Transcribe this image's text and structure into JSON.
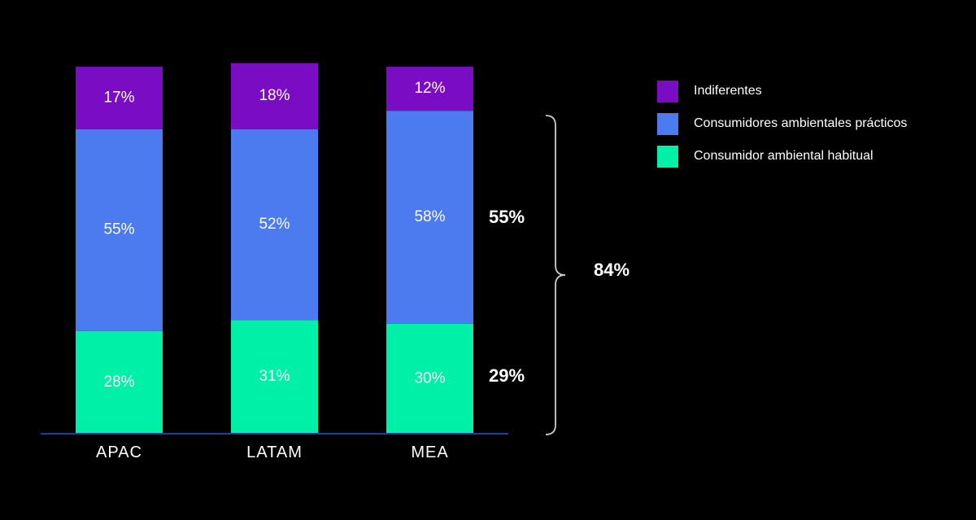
{
  "chart_data": {
    "type": "bar",
    "stacked": true,
    "categories": [
      "APAC",
      "LATAM",
      "MEA"
    ],
    "series": [
      {
        "name": "Consumidor ambiental habitual",
        "color": "#00f0a8",
        "values": [
          28,
          31,
          30
        ],
        "labels": [
          "28%",
          "31%",
          "30%"
        ]
      },
      {
        "name": "Consumidores ambientales prácticos",
        "color": "#4b7bef",
        "values": [
          55,
          52,
          58
        ],
        "labels": [
          "55%",
          "52%",
          "58%"
        ]
      },
      {
        "name": "Indiferentes",
        "color": "#7a0cc4",
        "values": [
          17,
          18,
          12
        ],
        "labels": [
          "17%",
          "18%",
          "12%"
        ]
      }
    ],
    "legend_order": [
      "Indiferentes",
      "Consumidores ambientales prácticos",
      "Consumidor ambiental habitual"
    ],
    "legend_position": "top-right",
    "ylim": [
      0,
      100
    ],
    "annotations": {
      "practical_total": "55%",
      "habitual_total": "29%",
      "combined_total": "84%"
    },
    "axis_line_color": "#1f3f9c"
  }
}
